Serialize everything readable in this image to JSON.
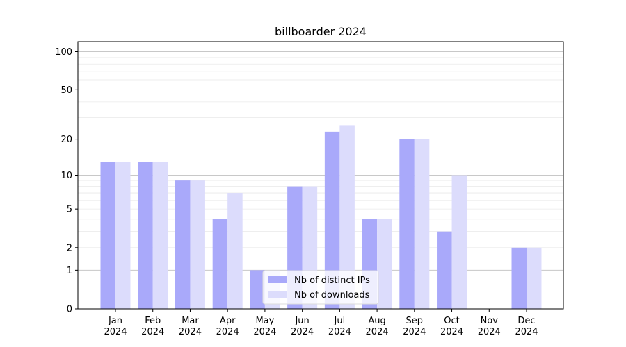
{
  "chart_data": {
    "type": "bar",
    "title": "billboarder 2024",
    "xlabel": "",
    "ylabel": "",
    "yscale": "log(1+y)",
    "ylim": [
      0,
      120
    ],
    "yticks": [
      0,
      1,
      2,
      5,
      10,
      20,
      50,
      100
    ],
    "grid": "horizontal",
    "legend_position": "bottom-center",
    "categories": [
      [
        "Jan",
        "2024"
      ],
      [
        "Feb",
        "2024"
      ],
      [
        "Mar",
        "2024"
      ],
      [
        "Apr",
        "2024"
      ],
      [
        "May",
        "2024"
      ],
      [
        "Jun",
        "2024"
      ],
      [
        "Jul",
        "2024"
      ],
      [
        "Aug",
        "2024"
      ],
      [
        "Sep",
        "2024"
      ],
      [
        "Oct",
        "2024"
      ],
      [
        "Nov",
        "2024"
      ],
      [
        "Dec",
        "2024"
      ]
    ],
    "series": [
      {
        "name": "Nb of distinct IPs",
        "color": "#a9a9fa",
        "values": [
          13,
          13,
          9,
          4,
          1,
          8,
          23,
          4,
          20,
          3,
          0,
          2
        ]
      },
      {
        "name": "Nb of downloads",
        "color": "#dcdcfc",
        "values": [
          13,
          13,
          9,
          7,
          1,
          8,
          26,
          4,
          20,
          10,
          0,
          2
        ]
      }
    ]
  }
}
